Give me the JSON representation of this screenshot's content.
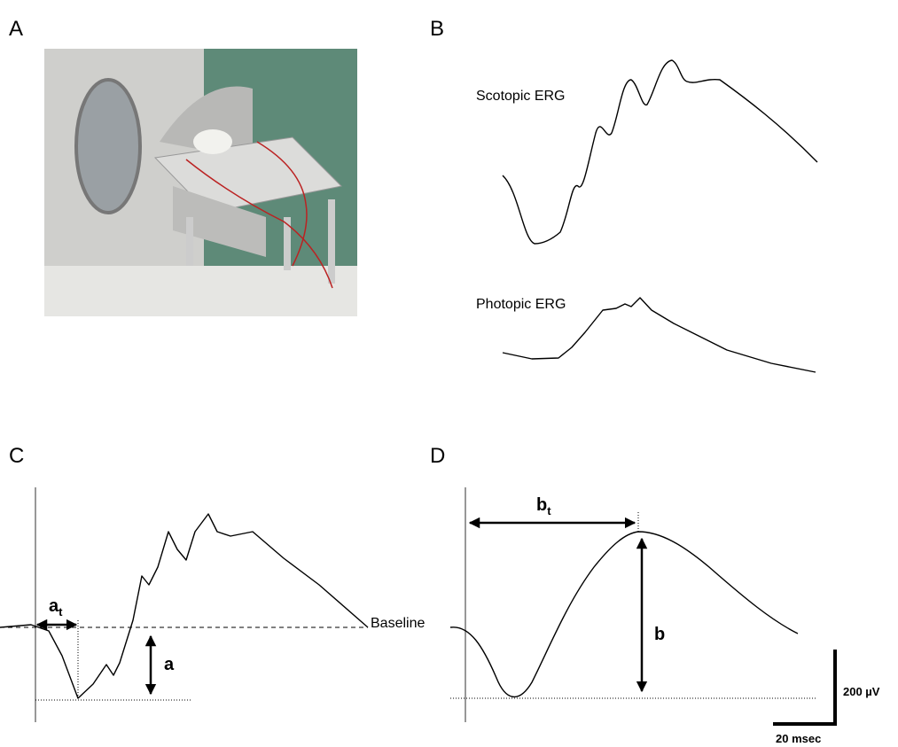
{
  "panels": {
    "a": "A",
    "b": "B",
    "c": "C",
    "d": "D"
  },
  "panel_b": {
    "scotopic": "Scotopic ERG",
    "photopic": "Photopic ERG"
  },
  "panel_c": {
    "a_t": {
      "main": "a",
      "sub": "t"
    },
    "a": "a",
    "baseline": "Baseline"
  },
  "panel_d": {
    "b_t": {
      "main": "b",
      "sub": "t"
    },
    "b": "b"
  },
  "scale_bar": {
    "vertical": "200 µV",
    "horizontal": "20 msec"
  }
}
